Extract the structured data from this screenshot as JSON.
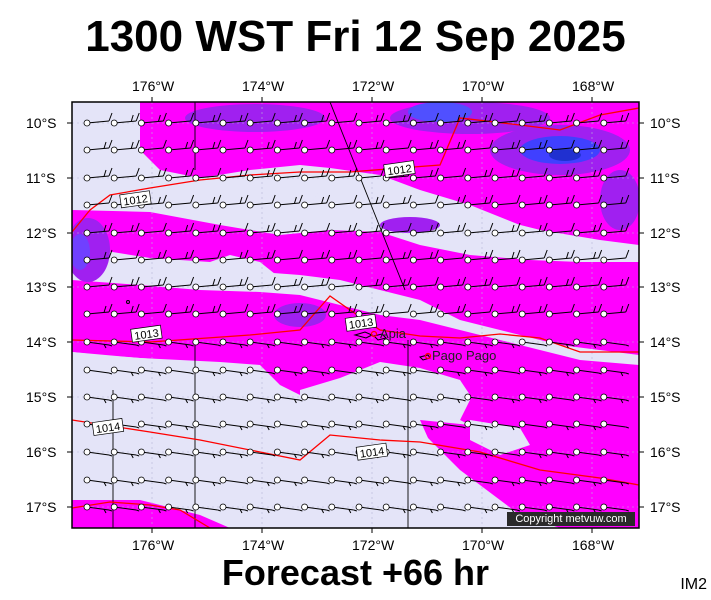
{
  "title": "1300 WST Fri 12 Sep 2025",
  "footer": "Forecast +66 hr",
  "model": "IM2",
  "copyright": "Copyright metvuw.com",
  "lon_labels": [
    "176°W",
    "174°W",
    "172°W",
    "170°W",
    "168°W"
  ],
  "lat_labels": [
    "10°S",
    "11°S",
    "12°S",
    "13°S",
    "14°S",
    "15°S",
    "16°S",
    "17°S"
  ],
  "places": [
    {
      "name": "Apia",
      "lon": -171.75,
      "lat": -13.83
    },
    {
      "name": "Pago Pago",
      "lon": -170.7,
      "lat": -14.28
    }
  ],
  "isobar_labels": [
    {
      "text": "1012",
      "lon": -176.3,
      "lat": -11.4
    },
    {
      "text": "1012",
      "lon": -171.5,
      "lat": -10.85
    },
    {
      "text": "1013",
      "lon": -176.1,
      "lat": -13.85
    },
    {
      "text": "1013",
      "lon": -172.2,
      "lat": -13.65
    },
    {
      "text": "1014",
      "lon": -176.8,
      "lat": -15.55
    },
    {
      "text": "1014",
      "lon": -172.0,
      "lat": -16.0
    }
  ],
  "colors": {
    "background": "#e4e4f8",
    "rain_light": "#ff00ff",
    "rain_mid": "#a020f0",
    "rain_heavy": "#3030ff",
    "isobar": "#ff0000"
  }
}
